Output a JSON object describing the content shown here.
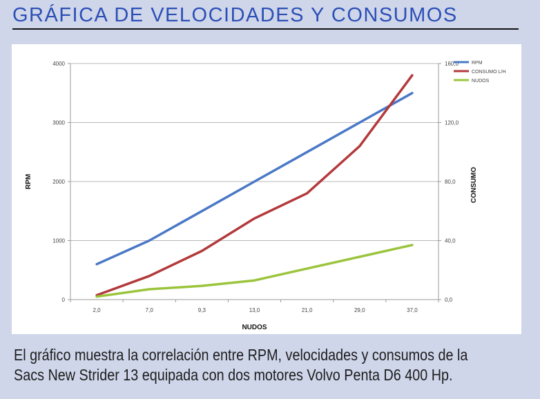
{
  "title": "GRÁFICA DE VELOCIDADES Y CONSUMOS",
  "caption": {
    "line1": "El gráfico muestra la correlación entre RPM, velocidades y consumos de la",
    "line2": "Sacs New Strider 13 equipada con dos motores Volvo Penta D6 400 Hp."
  },
  "colors": {
    "background": "#cfd6ea",
    "title": "#2c4fb5",
    "rpm": "#4a78c6",
    "consumo": "#b3393b",
    "nudos": "#9bc43c"
  },
  "chart_data": {
    "type": "line",
    "categories": [
      "2,0",
      "7,0",
      "9,3",
      "13,0",
      "21,0",
      "29,0",
      "37,0"
    ],
    "xlabel": "NUDOS",
    "ylabel": "RPM",
    "y2label": "CONSUMO",
    "ylim": [
      0,
      4000
    ],
    "y2lim": [
      0,
      160
    ],
    "yticks": [
      "0",
      "1000",
      "2000",
      "3000",
      "4000"
    ],
    "y2ticks": [
      "0,0",
      "40,0",
      "80,0",
      "120,0",
      "160,0"
    ],
    "grid": true,
    "legend_position": "top-right",
    "series": [
      {
        "name": "RPM",
        "axis": "left",
        "values": [
          600,
          1000,
          1500,
          2000,
          2500,
          3000,
          3500
        ]
      },
      {
        "name": "CONSUMO L/H",
        "axis": "right",
        "values": [
          3,
          16,
          33,
          55,
          72,
          104,
          152
        ]
      },
      {
        "name": "NUDOS",
        "axis": "right",
        "values": [
          2,
          7,
          9.3,
          13,
          21,
          29,
          37
        ]
      }
    ]
  }
}
